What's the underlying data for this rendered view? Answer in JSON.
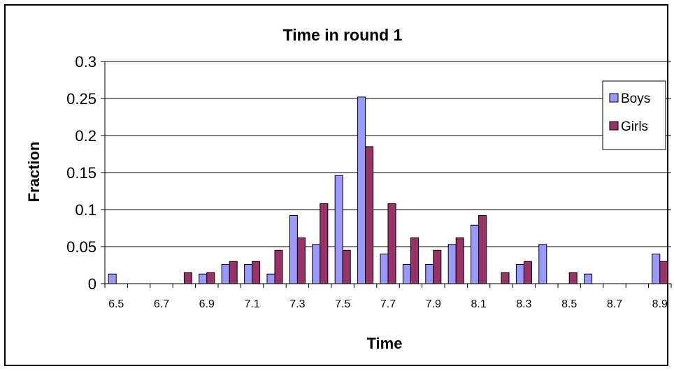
{
  "chart_data": {
    "type": "bar",
    "title": "Time in round 1",
    "xlabel": "Time",
    "ylabel": "Fraction",
    "ylim": [
      0,
      0.3
    ],
    "yticks": [
      "0",
      "0.05",
      "0.1",
      "0.15",
      "0.2",
      "0.25",
      "0.3"
    ],
    "categories": [
      "6.5",
      "6.6",
      "6.7",
      "6.8",
      "6.9",
      "7",
      "7.1",
      "7.2",
      "7.3",
      "7.4",
      "7.5",
      "7.6",
      "7.7",
      "7.8",
      "7.9",
      "8",
      "8.1",
      "8.2",
      "8.3",
      "8.4",
      "8.5",
      "8.6",
      "8.7",
      "8.8",
      "8.9"
    ],
    "tick_labels": [
      "6.5",
      "",
      "6.7",
      "",
      "6.9",
      "",
      "7.1",
      "",
      "7.3",
      "",
      "7.5",
      "",
      "7.7",
      "",
      "7.9",
      "",
      "8.1",
      "",
      "8.3",
      "",
      "8.5",
      "",
      "8.7",
      "",
      "8.9"
    ],
    "series": [
      {
        "name": "Boys",
        "color": "#9999ff",
        "values": [
          0.013,
          0,
          0,
          0,
          0.013,
          0.026,
          0.026,
          0.013,
          0.092,
          0.053,
          0.146,
          0.252,
          0.04,
          0.026,
          0.026,
          0.053,
          0.079,
          0,
          0.026,
          0.053,
          0,
          0.013,
          0,
          0,
          0.04
        ]
      },
      {
        "name": "Girls",
        "color": "#993366",
        "values": [
          0,
          0,
          0,
          0.015,
          0.015,
          0.03,
          0.03,
          0.045,
          0.062,
          0.108,
          0.045,
          0.185,
          0.108,
          0.062,
          0.045,
          0.062,
          0.092,
          0.015,
          0.03,
          0,
          0.015,
          0,
          0,
          0,
          0.03
        ]
      }
    ],
    "grid": "horizontal",
    "legend_position": "top-right"
  }
}
